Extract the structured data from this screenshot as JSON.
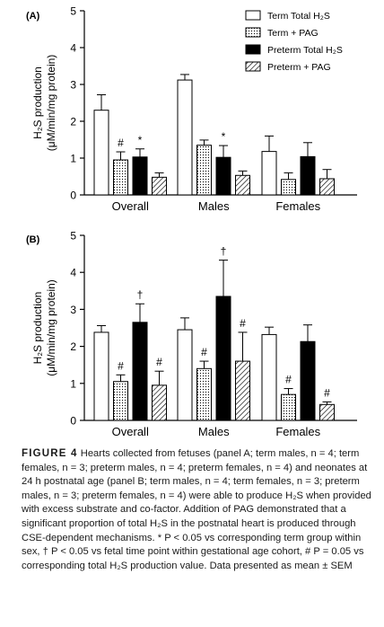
{
  "chart_data": [
    {
      "panel": "(A)",
      "type": "bar",
      "ylabel": [
        "H₂S production",
        "(μM/min/mg protein)"
      ],
      "ylim": [
        0,
        5
      ],
      "yticks": [
        0,
        1,
        2,
        3,
        4,
        5
      ],
      "categories": [
        "Overall",
        "Males",
        "Females"
      ],
      "series": [
        {
          "name": "Term Total H₂S",
          "values": [
            2.3,
            3.12,
            1.18
          ],
          "errors": [
            0.42,
            0.15,
            0.42
          ],
          "annotations": [
            "",
            "",
            ""
          ]
        },
        {
          "name": "Term + PAG",
          "values": [
            0.95,
            1.35,
            0.42
          ],
          "errors": [
            0.22,
            0.14,
            0.18
          ],
          "annotations": [
            "#",
            "",
            ""
          ]
        },
        {
          "name": "Preterm Total H₂S",
          "values": [
            1.03,
            1.02,
            1.04
          ],
          "errors": [
            0.22,
            0.32,
            0.38
          ],
          "annotations": [
            "*",
            "*",
            ""
          ]
        },
        {
          "name": "Preterm + PAG",
          "values": [
            0.48,
            0.53,
            0.44
          ],
          "errors": [
            0.12,
            0.12,
            0.25
          ],
          "annotations": [
            "",
            "",
            ""
          ]
        }
      ],
      "legend": "top-right"
    },
    {
      "panel": "(B)",
      "type": "bar",
      "ylabel": [
        "H₂S production",
        "(μM/min/mg protein)"
      ],
      "ylim": [
        0,
        5
      ],
      "yticks": [
        0,
        1,
        2,
        3,
        4,
        5
      ],
      "categories": [
        "Overall",
        "Males",
        "Females"
      ],
      "series": [
        {
          "name": "Term Total H₂S",
          "values": [
            2.38,
            2.45,
            2.32
          ],
          "errors": [
            0.18,
            0.32,
            0.2
          ],
          "annotations": [
            "",
            "",
            ""
          ]
        },
        {
          "name": "Term + PAG",
          "values": [
            1.05,
            1.4,
            0.7
          ],
          "errors": [
            0.18,
            0.2,
            0.16
          ],
          "annotations": [
            "#",
            "#",
            "#"
          ]
        },
        {
          "name": "Preterm Total H₂S",
          "values": [
            2.65,
            3.35,
            2.13
          ],
          "errors": [
            0.5,
            0.98,
            0.45
          ],
          "annotations": [
            "†",
            "†",
            ""
          ]
        },
        {
          "name": "Preterm + PAG",
          "values": [
            0.95,
            1.6,
            0.43
          ],
          "errors": [
            0.38,
            0.78,
            0.07
          ],
          "annotations": [
            "#",
            "#",
            "#"
          ]
        }
      ]
    }
  ],
  "caption": {
    "label": "FIGURE 4",
    "text": "Hearts collected from fetuses (panel A; term males, n = 4; term females, n = 3; preterm males, n = 4; preterm females, n = 4) and neonates at 24 h postnatal age (panel B; term males, n = 4; term females, n = 3; preterm males, n = 3; preterm females, n = 4) were able to produce H₂S when provided with excess substrate and co-factor. Addition of PAG demonstrated that a significant proportion of total H₂S in the postnatal heart is produced through CSE-dependent mechanisms. * P < 0.05 vs corresponding term group within sex, † P < 0.05 vs fetal time point within gestational age cohort, # P = 0.05 vs corresponding total H₂S production value. Data presented as mean ± SEM"
  }
}
